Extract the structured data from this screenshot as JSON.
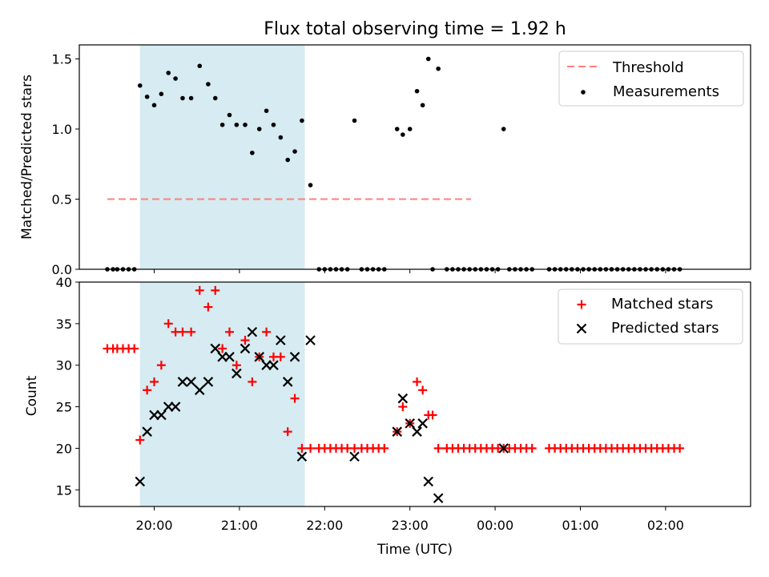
{
  "chart_data": {
    "type": "scatter",
    "title": "Flux total observing time = 1.92 h",
    "xlabel": "Time (UTC)",
    "x_tick_labels": [
      "20:00",
      "21:00",
      "22:00",
      "23:00",
      "00:00",
      "01:00",
      "02:00"
    ],
    "highlight_span": [
      "19:50",
      "21:46"
    ],
    "highlight_color": "#add8e6",
    "panels": [
      {
        "ylabel": "Matched/Predicted stars",
        "ylim": [
          0,
          1.6
        ],
        "y_ticks": [
          "0.0",
          "0.5",
          "1.0",
          "1.5"
        ],
        "legend_position": "top-right",
        "threshold": {
          "name": "Threshold",
          "y": 0.5,
          "x_range": [
            "19:27",
            "23:43"
          ],
          "color": "#ff7f7f"
        },
        "series": [
          {
            "name": "Measurements",
            "color": "#000000",
            "points": [
              [
                "19:27",
                0.0
              ],
              [
                "19:31",
                0.0
              ],
              [
                "19:34",
                0.0
              ],
              [
                "19:38",
                0.0
              ],
              [
                "19:42",
                0.0
              ],
              [
                "19:46",
                0.0
              ],
              [
                "19:50",
                1.31
              ],
              [
                "19:55",
                1.23
              ],
              [
                "20:00",
                1.17
              ],
              [
                "20:05",
                1.25
              ],
              [
                "20:10",
                1.4
              ],
              [
                "20:15",
                1.36
              ],
              [
                "20:20",
                1.22
              ],
              [
                "20:26",
                1.22
              ],
              [
                "20:32",
                1.45
              ],
              [
                "20:38",
                1.32
              ],
              [
                "20:43",
                1.22
              ],
              [
                "20:48",
                1.03
              ],
              [
                "20:53",
                1.1
              ],
              [
                "20:58",
                1.03
              ],
              [
                "21:04",
                1.03
              ],
              [
                "21:09",
                0.83
              ],
              [
                "21:14",
                1.0
              ],
              [
                "21:19",
                1.13
              ],
              [
                "21:24",
                1.03
              ],
              [
                "21:29",
                0.94
              ],
              [
                "21:34",
                0.78
              ],
              [
                "21:39",
                0.84
              ],
              [
                "21:44",
                1.06
              ],
              [
                "21:50",
                0.6
              ],
              [
                "21:56",
                0.0
              ],
              [
                "22:00",
                0.0
              ],
              [
                "22:04",
                0.0
              ],
              [
                "22:08",
                0.0
              ],
              [
                "22:12",
                0.0
              ],
              [
                "22:16",
                0.0
              ],
              [
                "22:21",
                1.06
              ],
              [
                "22:26",
                0.0
              ],
              [
                "22:30",
                0.0
              ],
              [
                "22:34",
                0.0
              ],
              [
                "22:38",
                0.0
              ],
              [
                "22:42",
                0.0
              ],
              [
                "22:51",
                1.0
              ],
              [
                "22:55",
                0.96
              ],
              [
                "23:00",
                1.0
              ],
              [
                "23:05",
                1.27
              ],
              [
                "23:09",
                1.17
              ],
              [
                "23:13",
                1.5
              ],
              [
                "23:16",
                0.0
              ],
              [
                "23:20",
                1.43
              ],
              [
                "23:26",
                0.0
              ],
              [
                "23:30",
                0.0
              ],
              [
                "23:34",
                0.0
              ],
              [
                "23:38",
                0.0
              ],
              [
                "23:42",
                0.0
              ],
              [
                "23:46",
                0.0
              ],
              [
                "23:50",
                0.0
              ],
              [
                "23:54",
                0.0
              ],
              [
                "23:58",
                0.0
              ],
              [
                "00:02",
                0.0
              ],
              [
                "00:06",
                1.0
              ],
              [
                "00:10",
                0.0
              ],
              [
                "00:14",
                0.0
              ],
              [
                "00:18",
                0.0
              ],
              [
                "00:22",
                0.0
              ],
              [
                "00:26",
                0.0
              ],
              [
                "00:38",
                0.0
              ],
              [
                "00:42",
                0.0
              ],
              [
                "00:46",
                0.0
              ],
              [
                "00:50",
                0.0
              ],
              [
                "00:54",
                0.0
              ],
              [
                "00:58",
                0.0
              ],
              [
                "01:02",
                0.0
              ],
              [
                "01:06",
                0.0
              ],
              [
                "01:10",
                0.0
              ],
              [
                "01:14",
                0.0
              ],
              [
                "01:18",
                0.0
              ],
              [
                "01:22",
                0.0
              ],
              [
                "01:26",
                0.0
              ],
              [
                "01:30",
                0.0
              ],
              [
                "01:34",
                0.0
              ],
              [
                "01:38",
                0.0
              ],
              [
                "01:42",
                0.0
              ],
              [
                "01:46",
                0.0
              ],
              [
                "01:50",
                0.0
              ],
              [
                "01:54",
                0.0
              ],
              [
                "01:58",
                0.0
              ],
              [
                "02:02",
                0.0
              ],
              [
                "02:06",
                0.0
              ],
              [
                "02:10",
                0.0
              ]
            ]
          }
        ]
      },
      {
        "ylabel": "Count",
        "ylim": [
          13,
          40
        ],
        "y_ticks": [
          "15",
          "20",
          "25",
          "30",
          "35",
          "40"
        ],
        "legend_position": "top-right",
        "series": [
          {
            "name": "Matched stars",
            "marker": "plus",
            "color": "#ff0000",
            "points": [
              [
                "19:27",
                32
              ],
              [
                "19:31",
                32
              ],
              [
                "19:34",
                32
              ],
              [
                "19:38",
                32
              ],
              [
                "19:42",
                32
              ],
              [
                "19:46",
                32
              ],
              [
                "19:50",
                21
              ],
              [
                "19:55",
                27
              ],
              [
                "20:00",
                28
              ],
              [
                "20:05",
                30
              ],
              [
                "20:10",
                35
              ],
              [
                "20:15",
                34
              ],
              [
                "20:20",
                34
              ],
              [
                "20:26",
                34
              ],
              [
                "20:32",
                39
              ],
              [
                "20:38",
                37
              ],
              [
                "20:43",
                39
              ],
              [
                "20:48",
                32
              ],
              [
                "20:53",
                34
              ],
              [
                "20:58",
                30
              ],
              [
                "21:04",
                33
              ],
              [
                "21:09",
                28
              ],
              [
                "21:14",
                31
              ],
              [
                "21:19",
                34
              ],
              [
                "21:24",
                31
              ],
              [
                "21:29",
                31
              ],
              [
                "21:34",
                22
              ],
              [
                "21:39",
                26
              ],
              [
                "21:44",
                20
              ],
              [
                "21:50",
                20
              ],
              [
                "21:56",
                20
              ],
              [
                "22:00",
                20
              ],
              [
                "22:04",
                20
              ],
              [
                "22:08",
                20
              ],
              [
                "22:12",
                20
              ],
              [
                "22:16",
                20
              ],
              [
                "22:21",
                20
              ],
              [
                "22:26",
                20
              ],
              [
                "22:30",
                20
              ],
              [
                "22:34",
                20
              ],
              [
                "22:38",
                20
              ],
              [
                "22:42",
                20
              ],
              [
                "22:51",
                22
              ],
              [
                "22:55",
                25
              ],
              [
                "23:00",
                23
              ],
              [
                "23:05",
                28
              ],
              [
                "23:09",
                27
              ],
              [
                "23:13",
                24
              ],
              [
                "23:16",
                24
              ],
              [
                "23:20",
                20
              ],
              [
                "23:26",
                20
              ],
              [
                "23:30",
                20
              ],
              [
                "23:34",
                20
              ],
              [
                "23:38",
                20
              ],
              [
                "23:42",
                20
              ],
              [
                "23:46",
                20
              ],
              [
                "23:50",
                20
              ],
              [
                "23:54",
                20
              ],
              [
                "23:58",
                20
              ],
              [
                "00:02",
                20
              ],
              [
                "00:06",
                20
              ],
              [
                "00:10",
                20
              ],
              [
                "00:14",
                20
              ],
              [
                "00:18",
                20
              ],
              [
                "00:22",
                20
              ],
              [
                "00:26",
                20
              ],
              [
                "00:38",
                20
              ],
              [
                "00:42",
                20
              ],
              [
                "00:46",
                20
              ],
              [
                "00:50",
                20
              ],
              [
                "00:54",
                20
              ],
              [
                "00:58",
                20
              ],
              [
                "01:02",
                20
              ],
              [
                "01:06",
                20
              ],
              [
                "01:10",
                20
              ],
              [
                "01:14",
                20
              ],
              [
                "01:18",
                20
              ],
              [
                "01:22",
                20
              ],
              [
                "01:26",
                20
              ],
              [
                "01:30",
                20
              ],
              [
                "01:34",
                20
              ],
              [
                "01:38",
                20
              ],
              [
                "01:42",
                20
              ],
              [
                "01:46",
                20
              ],
              [
                "01:50",
                20
              ],
              [
                "01:54",
                20
              ],
              [
                "01:58",
                20
              ],
              [
                "02:02",
                20
              ],
              [
                "02:06",
                20
              ],
              [
                "02:10",
                20
              ]
            ]
          },
          {
            "name": "Predicted stars",
            "marker": "x",
            "color": "#000000",
            "points": [
              [
                "19:50",
                16
              ],
              [
                "19:55",
                22
              ],
              [
                "20:00",
                24
              ],
              [
                "20:05",
                24
              ],
              [
                "20:10",
                25
              ],
              [
                "20:15",
                25
              ],
              [
                "20:20",
                28
              ],
              [
                "20:26",
                28
              ],
              [
                "20:32",
                27
              ],
              [
                "20:38",
                28
              ],
              [
                "20:43",
                32
              ],
              [
                "20:48",
                31
              ],
              [
                "20:53",
                31
              ],
              [
                "20:58",
                29
              ],
              [
                "21:04",
                32
              ],
              [
                "21:09",
                34
              ],
              [
                "21:14",
                31
              ],
              [
                "21:19",
                30
              ],
              [
                "21:24",
                30
              ],
              [
                "21:29",
                33
              ],
              [
                "21:34",
                28
              ],
              [
                "21:39",
                31
              ],
              [
                "21:44",
                19
              ],
              [
                "21:50",
                33
              ],
              [
                "22:21",
                19
              ],
              [
                "22:51",
                22
              ],
              [
                "22:55",
                26
              ],
              [
                "23:00",
                23
              ],
              [
                "23:05",
                22
              ],
              [
                "23:09",
                23
              ],
              [
                "23:13",
                16
              ],
              [
                "23:20",
                14
              ],
              [
                "00:06",
                20
              ]
            ]
          }
        ]
      }
    ]
  }
}
